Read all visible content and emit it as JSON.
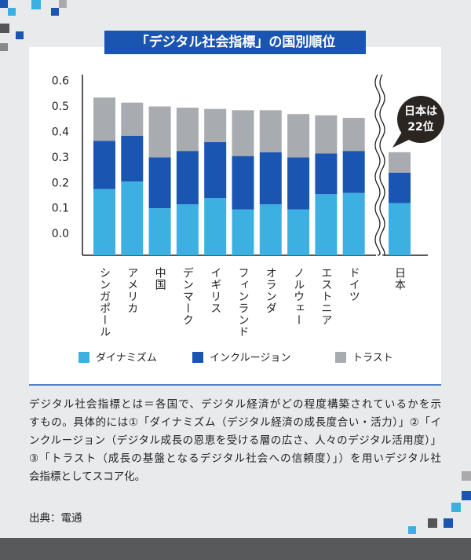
{
  "chart_data": {
    "type": "stacked_bar",
    "title": "「デジタル社会指標」の国別順位",
    "categories": [
      "シンガポール",
      "アメリカ",
      "中国",
      "デンマーク",
      "イギリス",
      "フィンランド",
      "オランダ",
      "ノルウェー",
      "エストニア",
      "ドイツ",
      "日本"
    ],
    "series": [
      {
        "name": "ダイナミズム",
        "color": "#3cb1e1",
        "values": [
          0.26,
          0.29,
          0.185,
          0.2,
          0.225,
          0.18,
          0.2,
          0.18,
          0.24,
          0.245,
          0.205
        ]
      },
      {
        "name": "インクルージョン",
        "color": "#1a55b2",
        "values": [
          0.19,
          0.18,
          0.2,
          0.21,
          0.22,
          0.21,
          0.205,
          0.205,
          0.16,
          0.165,
          0.12
        ]
      },
      {
        "name": "トラスト",
        "color": "#a8abaf",
        "values": [
          0.17,
          0.13,
          0.2,
          0.17,
          0.13,
          0.18,
          0.165,
          0.17,
          0.15,
          0.13,
          0.08
        ]
      }
    ],
    "ylim": [
      -0.083,
      0.627
    ],
    "yticks": [
      {
        "value": 0,
        "label": "0.0"
      },
      0.1,
      0.2,
      0.3,
      0.4,
      0.5,
      0.6
    ],
    "annotation": [
      "日本は",
      "22位"
    ],
    "legend": "bottom"
  },
  "note": [
    "デジタル社会指標とは＝各国で、デジタル経済がどの程度構築されているかを示",
    "すもの。具体的には①「ダイナミズム（デジタル経済の成長度合い・活力）」②「イ",
    "ンクルージョン（デジタル成長の恩恵を受ける層の広さ、人々のデジタル活用度）」",
    "③「トラスト（成長の基盤となるデジタル社会への信頼度）」）を用いデジタル社",
    "会指標としてスコア化。"
  ],
  "source": "出典：電通"
}
